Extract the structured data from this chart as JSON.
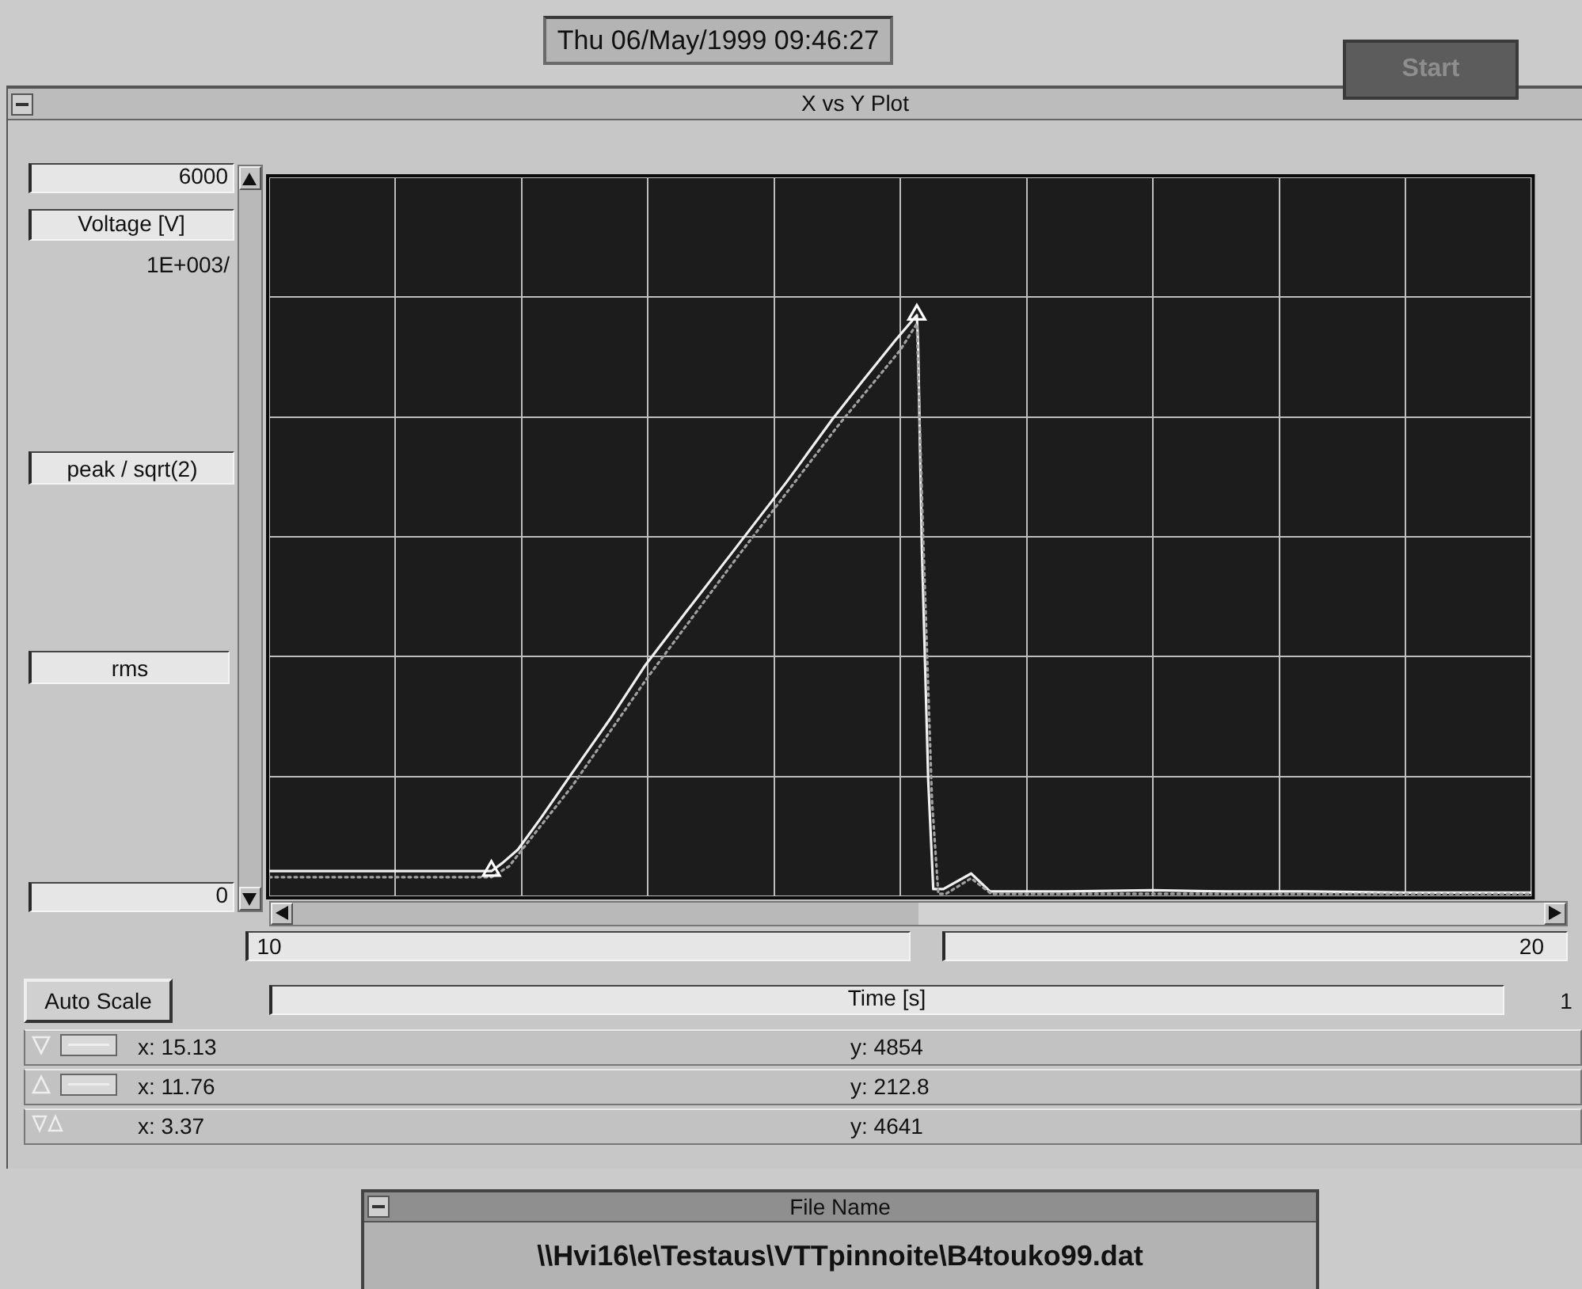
{
  "chart_data": {
    "type": "line",
    "title": "X vs Y Plot",
    "xlabel": "Time [s]",
    "ylabel": "Voltage [V]",
    "annotations": [
      "Thu 06/May/1999 09:46:27",
      "Start",
      "1E+003/",
      "peak / sqrt(2)",
      "rms",
      "Auto Scale",
      "1",
      "x: 15.13",
      "y: 4854",
      "x: 11.76",
      "y: 212.8",
      "x: 3.37",
      "y: 4641",
      "File Name",
      "\\\\Hvi16\\e\\Testaus\\VTTpinnoite\\B4touko99.dat"
    ],
    "xlim": [
      10,
      20
    ],
    "ylim": [
      0,
      6000
    ],
    "xticks": [
      10,
      {
        "value": 11,
        "label": null
      },
      {
        "value": 12,
        "label": null
      },
      {
        "value": 13,
        "label": null
      },
      {
        "value": 14,
        "label": null
      },
      {
        "value": 15,
        "label": null
      },
      {
        "value": 16,
        "label": null
      },
      {
        "value": 17,
        "label": null
      },
      {
        "value": 18,
        "label": null
      },
      {
        "value": 19,
        "label": null
      },
      20
    ],
    "yticks": [
      0,
      {
        "value": 1000,
        "label": null
      },
      {
        "value": 2000,
        "label": null
      },
      {
        "value": 3000,
        "label": null
      },
      {
        "value": 4000,
        "label": null
      },
      {
        "value": 5000,
        "label": null
      },
      6000
    ],
    "grid": true,
    "legend": false,
    "series": [
      {
        "color": "#f0f0f0",
        "line_style": "solid",
        "x": [
          10,
          11.76,
          11.85,
          11.97,
          12.15,
          12.38,
          12.7,
          12.98,
          13.3,
          13.69,
          14.1,
          14.46,
          14.7,
          14.96,
          15.13,
          15.14,
          15.17,
          15.22,
          15.26,
          15.34,
          15.56,
          15.71,
          16.3,
          17.0,
          17.6,
          18.2,
          19.0,
          20
        ],
        "values": [
          210,
          210,
          280,
          390,
          650,
          1000,
          1480,
          1930,
          2370,
          2900,
          3460,
          3980,
          4300,
          4640,
          4850,
          4600,
          2900,
          970,
          60,
          60,
          190,
          40,
          40,
          50,
          40,
          40,
          30,
          30
        ]
      },
      {
        "color": "#a0a0a0",
        "line_style": "dotted",
        "x": [
          10,
          11.76,
          11.9,
          12.1,
          12.4,
          13.0,
          13.7,
          14.5,
          15.0,
          15.13,
          15.18,
          15.25,
          15.3,
          15.36,
          15.56,
          15.72,
          20
        ],
        "values": [
          160,
          160,
          250,
          520,
          920,
          1830,
          2820,
          3920,
          4560,
          4780,
          3000,
          800,
          20,
          20,
          150,
          20,
          20
        ]
      },
      {
        "type": "scatter",
        "color": "#ffffff",
        "marker": "triangle",
        "x": [
          15.13,
          11.76
        ],
        "values": [
          4854,
          212.8
        ]
      }
    ]
  }
}
